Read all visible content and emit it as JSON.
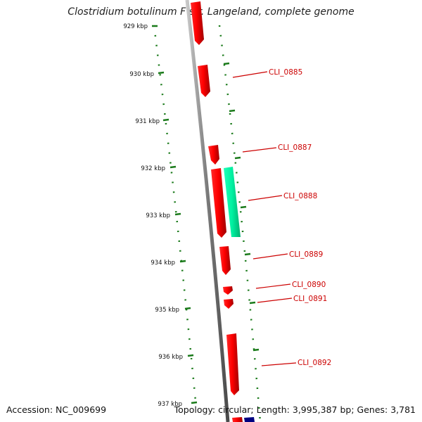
{
  "title": "Clostridium botulinum F str. Langeland, complete genome",
  "accession": "Accession: NC_009699",
  "topology": "Topology: circular; Length: 3,995,387 bp; Genes: 3,781",
  "colors": {
    "backbone": "#8a8a8a",
    "tick": "#1a7a1a",
    "gene_red": "#ff0000",
    "gene_green": "#00f0a0",
    "gene_blue": "#000080",
    "label": "#cc0000"
  },
  "scale_labels": [
    "929 kbp",
    "930 kbp",
    "931 kbp",
    "932 kbp",
    "933 kbp",
    "934 kbp",
    "935 kbp",
    "936 kbp",
    "937 kbp"
  ],
  "gene_labels": [
    "CLI_0885",
    "CLI_0887",
    "CLI_0888",
    "CLI_0889",
    "CLI_0890",
    "CLI_0891",
    "CLI_0892"
  ]
}
